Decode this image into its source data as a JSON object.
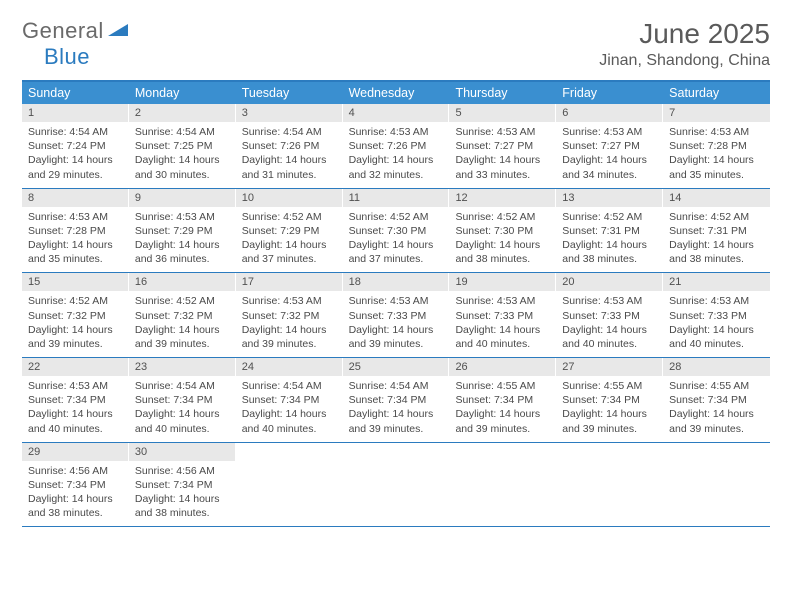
{
  "logo": {
    "text_gray": "General",
    "text_blue": "Blue"
  },
  "title": "June 2025",
  "location": "Jinan, Shandong, China",
  "colors": {
    "header_bg": "#3a8fd0",
    "border": "#2b7bbf",
    "daynum_bg": "#e8e8e8",
    "text_dark": "#505050",
    "text_body": "#4a4a4a"
  },
  "weekday_headers": [
    "Sunday",
    "Monday",
    "Tuesday",
    "Wednesday",
    "Thursday",
    "Friday",
    "Saturday"
  ],
  "weeks": [
    [
      {
        "n": "1",
        "sr": "4:54 AM",
        "ss": "7:24 PM",
        "dl1": "14 hours",
        "dl2": "29 minutes."
      },
      {
        "n": "2",
        "sr": "4:54 AM",
        "ss": "7:25 PM",
        "dl1": "14 hours",
        "dl2": "30 minutes."
      },
      {
        "n": "3",
        "sr": "4:54 AM",
        "ss": "7:26 PM",
        "dl1": "14 hours",
        "dl2": "31 minutes."
      },
      {
        "n": "4",
        "sr": "4:53 AM",
        "ss": "7:26 PM",
        "dl1": "14 hours",
        "dl2": "32 minutes."
      },
      {
        "n": "5",
        "sr": "4:53 AM",
        "ss": "7:27 PM",
        "dl1": "14 hours",
        "dl2": "33 minutes."
      },
      {
        "n": "6",
        "sr": "4:53 AM",
        "ss": "7:27 PM",
        "dl1": "14 hours",
        "dl2": "34 minutes."
      },
      {
        "n": "7",
        "sr": "4:53 AM",
        "ss": "7:28 PM",
        "dl1": "14 hours",
        "dl2": "35 minutes."
      }
    ],
    [
      {
        "n": "8",
        "sr": "4:53 AM",
        "ss": "7:28 PM",
        "dl1": "14 hours",
        "dl2": "35 minutes."
      },
      {
        "n": "9",
        "sr": "4:53 AM",
        "ss": "7:29 PM",
        "dl1": "14 hours",
        "dl2": "36 minutes."
      },
      {
        "n": "10",
        "sr": "4:52 AM",
        "ss": "7:29 PM",
        "dl1": "14 hours",
        "dl2": "37 minutes."
      },
      {
        "n": "11",
        "sr": "4:52 AM",
        "ss": "7:30 PM",
        "dl1": "14 hours",
        "dl2": "37 minutes."
      },
      {
        "n": "12",
        "sr": "4:52 AM",
        "ss": "7:30 PM",
        "dl1": "14 hours",
        "dl2": "38 minutes."
      },
      {
        "n": "13",
        "sr": "4:52 AM",
        "ss": "7:31 PM",
        "dl1": "14 hours",
        "dl2": "38 minutes."
      },
      {
        "n": "14",
        "sr": "4:52 AM",
        "ss": "7:31 PM",
        "dl1": "14 hours",
        "dl2": "38 minutes."
      }
    ],
    [
      {
        "n": "15",
        "sr": "4:52 AM",
        "ss": "7:32 PM",
        "dl1": "14 hours",
        "dl2": "39 minutes."
      },
      {
        "n": "16",
        "sr": "4:52 AM",
        "ss": "7:32 PM",
        "dl1": "14 hours",
        "dl2": "39 minutes."
      },
      {
        "n": "17",
        "sr": "4:53 AM",
        "ss": "7:32 PM",
        "dl1": "14 hours",
        "dl2": "39 minutes."
      },
      {
        "n": "18",
        "sr": "4:53 AM",
        "ss": "7:33 PM",
        "dl1": "14 hours",
        "dl2": "39 minutes."
      },
      {
        "n": "19",
        "sr": "4:53 AM",
        "ss": "7:33 PM",
        "dl1": "14 hours",
        "dl2": "40 minutes."
      },
      {
        "n": "20",
        "sr": "4:53 AM",
        "ss": "7:33 PM",
        "dl1": "14 hours",
        "dl2": "40 minutes."
      },
      {
        "n": "21",
        "sr": "4:53 AM",
        "ss": "7:33 PM",
        "dl1": "14 hours",
        "dl2": "40 minutes."
      }
    ],
    [
      {
        "n": "22",
        "sr": "4:53 AM",
        "ss": "7:34 PM",
        "dl1": "14 hours",
        "dl2": "40 minutes."
      },
      {
        "n": "23",
        "sr": "4:54 AM",
        "ss": "7:34 PM",
        "dl1": "14 hours",
        "dl2": "40 minutes."
      },
      {
        "n": "24",
        "sr": "4:54 AM",
        "ss": "7:34 PM",
        "dl1": "14 hours",
        "dl2": "40 minutes."
      },
      {
        "n": "25",
        "sr": "4:54 AM",
        "ss": "7:34 PM",
        "dl1": "14 hours",
        "dl2": "39 minutes."
      },
      {
        "n": "26",
        "sr": "4:55 AM",
        "ss": "7:34 PM",
        "dl1": "14 hours",
        "dl2": "39 minutes."
      },
      {
        "n": "27",
        "sr": "4:55 AM",
        "ss": "7:34 PM",
        "dl1": "14 hours",
        "dl2": "39 minutes."
      },
      {
        "n": "28",
        "sr": "4:55 AM",
        "ss": "7:34 PM",
        "dl1": "14 hours",
        "dl2": "39 minutes."
      }
    ],
    [
      {
        "n": "29",
        "sr": "4:56 AM",
        "ss": "7:34 PM",
        "dl1": "14 hours",
        "dl2": "38 minutes."
      },
      {
        "n": "30",
        "sr": "4:56 AM",
        "ss": "7:34 PM",
        "dl1": "14 hours",
        "dl2": "38 minutes."
      },
      null,
      null,
      null,
      null,
      null
    ]
  ],
  "labels": {
    "sunrise": "Sunrise:",
    "sunset": "Sunset:",
    "daylight": "Daylight:",
    "and": "and"
  }
}
